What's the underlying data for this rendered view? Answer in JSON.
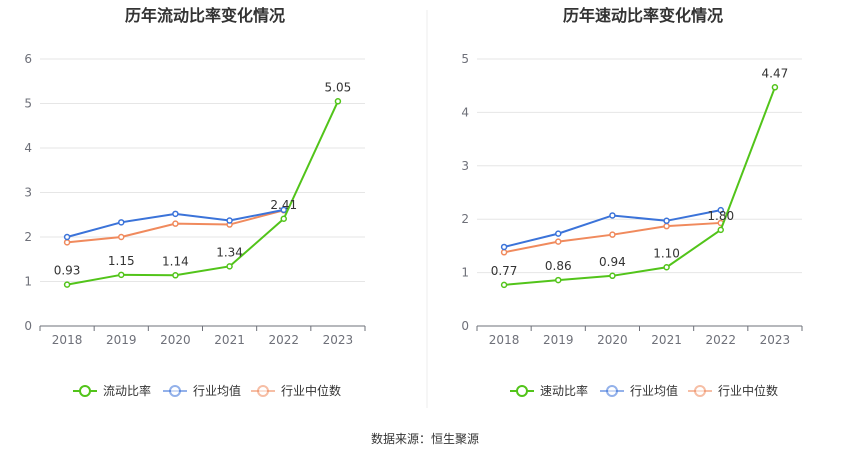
{
  "source_label": "数据来源：恒生聚源",
  "chart_data": [
    {
      "type": "line",
      "title": "历年流动比率变化情况",
      "categories": [
        "2018",
        "2019",
        "2020",
        "2021",
        "2022",
        "2023"
      ],
      "ylim": [
        0,
        6
      ],
      "yticks": [
        0,
        1,
        2,
        3,
        4,
        5,
        6
      ],
      "grid": true,
      "legend_position": "bottom",
      "series": [
        {
          "name": "流动比率",
          "color": "#52c41a",
          "values": [
            0.93,
            1.15,
            1.14,
            1.34,
            2.41,
            5.05
          ],
          "labels": [
            "0.93",
            "1.15",
            "1.14",
            "1.34",
            "2.41",
            "5.05"
          ]
        },
        {
          "name": "行业均值",
          "color": "#3b73d9",
          "values": [
            2.0,
            2.33,
            2.52,
            2.37,
            2.61,
            null
          ]
        },
        {
          "name": "行业中位数",
          "color": "#f08a5d",
          "values": [
            1.88,
            2.0,
            2.3,
            2.28,
            2.6,
            null
          ]
        }
      ]
    },
    {
      "type": "line",
      "title": "历年速动比率变化情况",
      "categories": [
        "2018",
        "2019",
        "2020",
        "2021",
        "2022",
        "2023"
      ],
      "ylim": [
        0,
        5
      ],
      "yticks": [
        0,
        1,
        2,
        3,
        4,
        5
      ],
      "grid": true,
      "legend_position": "bottom",
      "series": [
        {
          "name": "速动比率",
          "color": "#52c41a",
          "values": [
            0.77,
            0.86,
            0.94,
            1.1,
            1.8,
            4.47
          ],
          "labels": [
            "0.77",
            "0.86",
            "0.94",
            "1.10",
            "1.80",
            "4.47"
          ]
        },
        {
          "name": "行业均值",
          "color": "#3b73d9",
          "values": [
            1.48,
            1.73,
            2.07,
            1.97,
            2.17,
            null
          ]
        },
        {
          "name": "行业中位数",
          "color": "#f08a5d",
          "values": [
            1.38,
            1.58,
            1.71,
            1.87,
            1.93,
            null
          ]
        }
      ]
    }
  ]
}
